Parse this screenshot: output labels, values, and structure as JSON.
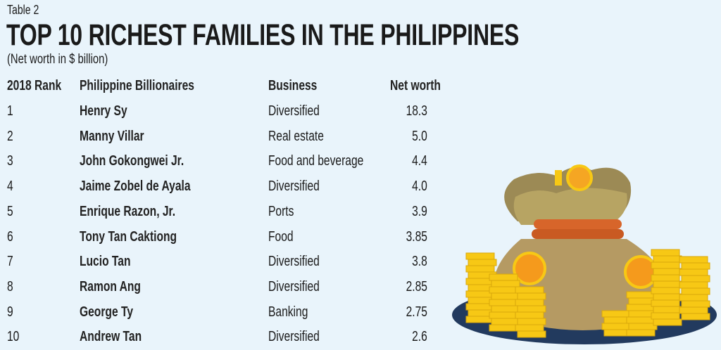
{
  "label": "Table 2",
  "title": "TOP 10 RICHEST FAMILIES IN THE PHILIPPINES",
  "subtitle": "(Net worth in $ billion)",
  "chart_data": {
    "type": "table",
    "title": "TOP 10 RICHEST FAMILIES IN THE PHILIPPINES",
    "subtitle": "(Net worth in $ billion)",
    "columns": [
      "2018 Rank",
      "Philippine Billionaires",
      "Business",
      "Net worth"
    ],
    "rows": [
      [
        "1",
        "Henry Sy",
        "Diversified",
        "18.3"
      ],
      [
        "2",
        "Manny Villar",
        "Real estate",
        "5.0"
      ],
      [
        "3",
        "John Gokongwei Jr.",
        "Food and beverage",
        "4.4"
      ],
      [
        "4",
        "Jaime Zobel de Ayala",
        "Diversified",
        "4.0"
      ],
      [
        "5",
        "Enrique Razon, Jr.",
        "Ports",
        "3.9"
      ],
      [
        "6",
        "Tony Tan Caktiong",
        "Food",
        "3.85"
      ],
      [
        "7",
        "Lucio Tan",
        "Diversified",
        "3.8"
      ],
      [
        "8",
        "Ramon Ang",
        "Diversified",
        "2.85"
      ],
      [
        "9",
        "George Ty",
        "Banking",
        "2.75"
      ],
      [
        "10",
        "Andrew Tan",
        "Diversified",
        "2.6"
      ]
    ]
  },
  "colors": {
    "background": "#e9f4fb",
    "bag": "#b59a63",
    "rope": "#d7652a",
    "coin": "#f7c815",
    "shadow": "#223a5e"
  }
}
